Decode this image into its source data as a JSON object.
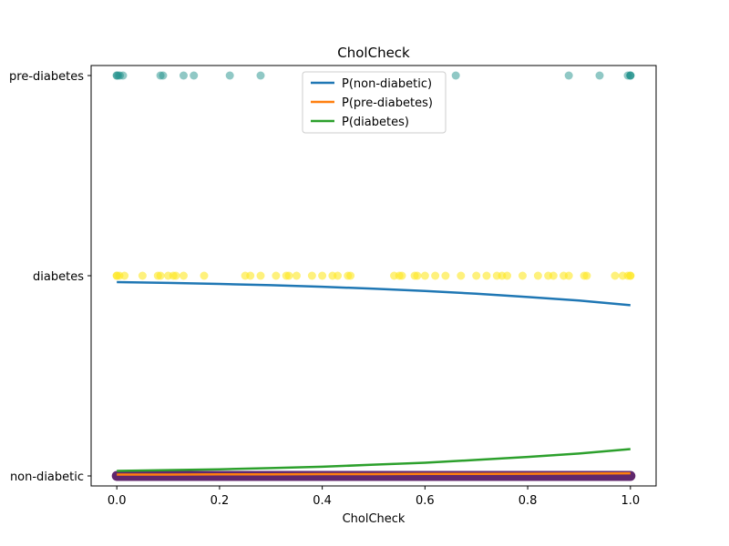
{
  "chart_data": {
    "type": "scatter",
    "title": "CholCheck",
    "xlabel": "CholCheck",
    "ylabel": "",
    "xlim": [
      -0.05,
      1.05
    ],
    "ylim": [
      -0.05,
      2.05
    ],
    "x_ticks": [
      0.0,
      0.2,
      0.4,
      0.6,
      0.8,
      1.0
    ],
    "x_tick_labels": [
      "0.0",
      "0.2",
      "0.4",
      "0.6",
      "0.8",
      "1.0"
    ],
    "y_ticks": [
      0,
      1,
      2
    ],
    "y_tick_labels": [
      "non-diabetic",
      "diabetes",
      "pre-diabetes"
    ],
    "grid": false,
    "legend_position": "top-center",
    "scatter_series": [
      {
        "class_value": 2,
        "color": "#21918c",
        "alpha": 0.5,
        "x": [
          0.0,
          0.0,
          0.003,
          0.006,
          0.012,
          0.085,
          0.09,
          0.13,
          0.15,
          0.22,
          0.28,
          0.66,
          0.88,
          0.94,
          0.995,
          1.0,
          1.0,
          1.0
        ]
      },
      {
        "class_value": 1,
        "color": "#fde725",
        "alpha": 0.6,
        "x": [
          0.0,
          0.0,
          0.005,
          0.015,
          0.05,
          0.08,
          0.085,
          0.1,
          0.11,
          0.115,
          0.13,
          0.17,
          0.25,
          0.26,
          0.28,
          0.31,
          0.33,
          0.335,
          0.35,
          0.38,
          0.4,
          0.42,
          0.43,
          0.45,
          0.455,
          0.54,
          0.55,
          0.555,
          0.58,
          0.585,
          0.6,
          0.62,
          0.64,
          0.67,
          0.7,
          0.72,
          0.74,
          0.75,
          0.76,
          0.79,
          0.82,
          0.84,
          0.85,
          0.87,
          0.88,
          0.91,
          0.915,
          0.97,
          0.985,
          0.995,
          1.0,
          1.0
        ]
      },
      {
        "class_value": 0,
        "color": "#440154",
        "alpha": 0.6,
        "dense": true,
        "x_range": [
          0.0,
          1.0
        ]
      }
    ],
    "series": [
      {
        "name": "P(non-diabetic)",
        "color": "#1f77b4",
        "x": [
          0.0,
          0.1,
          0.2,
          0.3,
          0.4,
          0.5,
          0.6,
          0.7,
          0.8,
          0.9,
          1.0
        ],
        "y": [
          0.968,
          0.964,
          0.959,
          0.953,
          0.945,
          0.935,
          0.924,
          0.91,
          0.894,
          0.876,
          0.853
        ]
      },
      {
        "name": "P(pre-diabetes)",
        "color": "#ff7f0e",
        "x": [
          0.0,
          0.1,
          0.2,
          0.3,
          0.4,
          0.5,
          0.6,
          0.7,
          0.8,
          0.9,
          1.0
        ],
        "y": [
          0.007,
          0.007,
          0.008,
          0.008,
          0.009,
          0.009,
          0.01,
          0.01,
          0.011,
          0.012,
          0.013
        ]
      },
      {
        "name": "P(diabetes)",
        "color": "#2ca02c",
        "x": [
          0.0,
          0.1,
          0.2,
          0.3,
          0.4,
          0.5,
          0.6,
          0.7,
          0.8,
          0.9,
          1.0
        ],
        "y": [
          0.025,
          0.029,
          0.033,
          0.039,
          0.046,
          0.056,
          0.066,
          0.08,
          0.095,
          0.112,
          0.134
        ]
      }
    ]
  }
}
